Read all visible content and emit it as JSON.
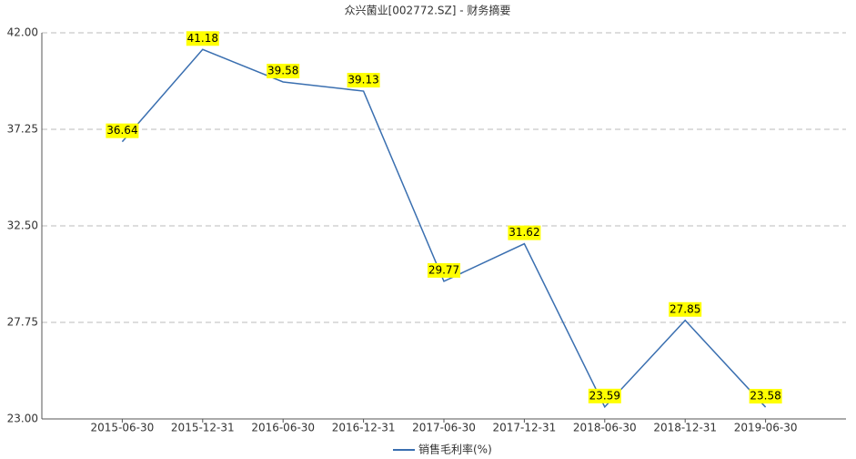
{
  "chart_data": {
    "type": "line",
    "title": "众兴菌业[002772.SZ] - 财务摘要",
    "categories": [
      "2015-06-30",
      "2015-12-31",
      "2016-06-30",
      "2016-12-31",
      "2017-06-30",
      "2017-12-31",
      "2018-06-30",
      "2018-12-31",
      "2019-06-30"
    ],
    "series": [
      {
        "name": "销售毛利率(%)",
        "color": "#3a6fb0",
        "values": [
          36.64,
          41.18,
          39.58,
          39.13,
          29.77,
          31.62,
          23.59,
          27.85,
          23.58
        ]
      }
    ],
    "ylim": [
      23,
      42
    ],
    "yticks": [
      {
        "value": 23,
        "label": "23.00"
      },
      {
        "value": 27.75,
        "label": "27.75"
      },
      {
        "value": 32.5,
        "label": "32.50"
      },
      {
        "value": 37.25,
        "label": "37.25"
      },
      {
        "value": 42,
        "label": "42.00"
      }
    ],
    "grid": true,
    "legend": "bottom",
    "label_color": "#ffff00"
  }
}
